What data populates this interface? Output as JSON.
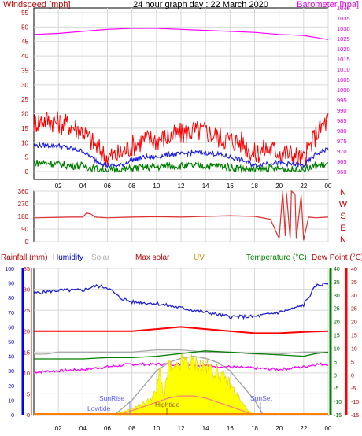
{
  "chart_data": [
    {
      "type": "line",
      "title": "24 hour graph day : 22 March 2020",
      "ylabel_left": "Windspeed [mph]",
      "ylabel_right": "Barometer [hpa]",
      "x_ticks": [
        "02",
        "04",
        "06",
        "08",
        "10",
        "12",
        "14",
        "16",
        "18",
        "20",
        "22",
        "00"
      ],
      "xlim": [
        0,
        24
      ],
      "ylim_left": [
        0,
        55
      ],
      "yticks_left": [
        "0",
        "5",
        "10",
        "15",
        "20",
        "25",
        "30",
        "35",
        "40",
        "45",
        "50",
        "55"
      ],
      "ylim_right": [
        960,
        1040
      ],
      "yticks_right": [
        "960",
        "965",
        "970",
        "975",
        "980",
        "985",
        "990",
        "995",
        "1000",
        "1005",
        "1010",
        "1015",
        "1020",
        "1025",
        "1030",
        "1035",
        "1040"
      ],
      "grid": true,
      "colors": {
        "gust": "#ff0000",
        "average": "#2020e0",
        "lull": "#008000",
        "barometer": "#ff00ff"
      },
      "series": [
        {
          "key": "barometer",
          "axis": "right",
          "x": [
            0,
            2,
            4,
            6,
            8,
            10,
            12,
            14,
            16,
            18,
            20,
            22,
            23,
            24
          ],
          "values": [
            1027,
            1027.5,
            1028.5,
            1029.5,
            1030,
            1030,
            1029.5,
            1029,
            1028.5,
            1028,
            1027,
            1026.5,
            1025.5,
            1024.5
          ]
        },
        {
          "key": "gust",
          "axis": "left",
          "x": [
            0,
            1,
            2,
            3,
            4,
            5,
            6,
            7,
            8,
            9,
            10,
            11,
            12,
            13,
            14,
            15,
            16,
            17,
            18,
            19,
            20,
            21,
            22,
            23,
            24
          ],
          "values": [
            17,
            18,
            17,
            16,
            14,
            9,
            5,
            6,
            9,
            11,
            11,
            12,
            13,
            14,
            14,
            12,
            11,
            10,
            6,
            8,
            7,
            6,
            4,
            13,
            18
          ]
        },
        {
          "key": "average",
          "axis": "left",
          "x": [
            0,
            1,
            2,
            3,
            4,
            5,
            6,
            7,
            8,
            9,
            10,
            11,
            12,
            13,
            14,
            15,
            16,
            17,
            18,
            19,
            20,
            21,
            22,
            23,
            24
          ],
          "values": [
            9,
            9,
            9,
            8,
            7,
            4,
            2,
            2,
            4,
            5,
            5,
            6,
            6,
            6.5,
            6.5,
            6,
            5,
            4,
            2,
            3,
            3,
            2.5,
            2,
            6,
            8
          ]
        },
        {
          "key": "lull",
          "axis": "left",
          "x": [
            0,
            1,
            2,
            3,
            4,
            5,
            6,
            7,
            8,
            9,
            10,
            11,
            12,
            13,
            14,
            15,
            16,
            17,
            18,
            19,
            20,
            21,
            22,
            23,
            24
          ],
          "values": [
            3,
            3,
            2.5,
            2,
            2,
            1,
            0.5,
            0.5,
            1,
            1.5,
            1.5,
            2,
            2,
            2,
            2,
            2,
            1.5,
            1,
            0.5,
            1,
            1,
            0.5,
            0.5,
            2,
            2.5
          ]
        }
      ]
    },
    {
      "type": "line",
      "title": "",
      "x_ticks": [
        "02",
        "04",
        "06",
        "08",
        "10",
        "12",
        "14",
        "16",
        "18",
        "20",
        "22",
        "00"
      ],
      "xlim": [
        0,
        24
      ],
      "ylim": [
        0,
        360
      ],
      "yticks": [
        "0",
        "90",
        "180",
        "270",
        "360"
      ],
      "direction_labels": [
        "N",
        "W",
        "S",
        "E",
        "N"
      ],
      "grid": true,
      "colors": {
        "direction": "#e03030"
      },
      "series": [
        {
          "key": "direction",
          "x": [
            0,
            3,
            4,
            4.3,
            4.7,
            5,
            6,
            8,
            10,
            12,
            14,
            16,
            18,
            19.3,
            19.8,
            20,
            20.3,
            20.5,
            20.6,
            20.9,
            21.0,
            21.3,
            21.4,
            21.8,
            22,
            22.4,
            23,
            24
          ],
          "values": [
            170,
            175,
            175,
            205,
            195,
            175,
            170,
            175,
            178,
            175,
            180,
            185,
            180,
            160,
            60,
            20,
            360,
            40,
            350,
            20,
            360,
            340,
            20,
            330,
            10,
            175,
            170,
            175
          ]
        }
      ]
    },
    {
      "type": "line",
      "title": "",
      "legend": [
        "Rainfall (mm)",
        "Humidity",
        "Solar",
        "Max solar",
        "UV",
        "Temperature (°C)",
        "Dew Point (°C)"
      ],
      "annotations": [
        "SunRise",
        "Lowtide",
        "Hightide",
        "SunSet"
      ],
      "x_ticks": [
        "02",
        "04",
        "06",
        "08",
        "10",
        "12",
        "14",
        "16",
        "18",
        "20",
        "22",
        "00"
      ],
      "xlim": [
        0,
        24
      ],
      "ylim_humidity": [
        0,
        100
      ],
      "yticks_humidity": [
        "0",
        "10",
        "20",
        "30",
        "40",
        "50",
        "60",
        "70",
        "80",
        "90",
        "100"
      ],
      "ylim_rain": [
        0,
        35
      ],
      "yticks_rain": [
        "0",
        "5",
        "10",
        "15",
        "20",
        "25",
        "30",
        "35"
      ],
      "ylim_temp": [
        -15,
        40
      ],
      "yticks_temp": [
        "-15",
        "-10",
        "-5",
        "0",
        "5",
        "10",
        "15",
        "20",
        "25",
        "30",
        "35",
        "40"
      ],
      "grid": true,
      "colors": {
        "humidity": "#2020d0",
        "rain": "#ff0000",
        "solar": "#aaaaaa",
        "maxsolar": "#a0a0a0",
        "solar_fill": "#ffff00",
        "uv": "#ff8080",
        "temperature": "#008000",
        "dewpoint": "#ff00ff",
        "temp_rain_axis": "#ff0000",
        "left_axis": "#0000ff"
      },
      "series": [
        {
          "key": "humidity",
          "axis": "humidity",
          "x": [
            0,
            2,
            4,
            5,
            6,
            7,
            8,
            10,
            12,
            14,
            16,
            17,
            18,
            20,
            21,
            22,
            23,
            24
          ],
          "values": [
            83,
            85,
            85,
            88,
            87,
            80,
            77,
            76,
            73,
            70,
            67,
            67,
            67,
            70,
            72,
            75,
            88,
            90
          ]
        },
        {
          "key": "rain",
          "axis": "rain",
          "x": [
            0,
            2,
            4,
            6,
            8,
            10,
            12,
            14,
            16,
            18,
            20,
            22,
            24
          ],
          "values": [
            20,
            20,
            20,
            20,
            20,
            20.5,
            21,
            20.5,
            20,
            19.5,
            19.5,
            19.8,
            20
          ]
        },
        {
          "key": "solar",
          "axis": "rain",
          "x": [
            0,
            1,
            2,
            4,
            6,
            8,
            10,
            12,
            14,
            16,
            18,
            20,
            22,
            24
          ],
          "values": [
            14.5,
            14.5,
            15,
            15,
            15,
            15,
            15.5,
            15.5,
            15,
            15,
            14.5,
            14.5,
            15,
            15
          ]
        },
        {
          "key": "temperature",
          "axis": "temp",
          "x": [
            0,
            2,
            4,
            6,
            8,
            10,
            12,
            14,
            16,
            18,
            20,
            22,
            23,
            24
          ],
          "values": [
            6,
            6,
            6,
            6.5,
            6.5,
            7,
            8,
            9,
            8.5,
            8,
            7.5,
            7,
            8,
            8.5
          ]
        },
        {
          "key": "dewpoint",
          "axis": "temp",
          "x": [
            0,
            2,
            4,
            6,
            8,
            10,
            12,
            14,
            16,
            18,
            20,
            22,
            23,
            24
          ],
          "values": [
            1,
            1.5,
            2,
            3,
            4,
            4,
            4,
            3.5,
            3,
            2.5,
            2,
            3,
            4,
            4
          ]
        },
        {
          "key": "maxsolar",
          "axis": "rain",
          "x": [
            6.6,
            8,
            9,
            10,
            11,
            12,
            13,
            14,
            15,
            16,
            17,
            18,
            18.7
          ],
          "values": [
            0,
            3.5,
            7,
            10.5,
            12.5,
            13.5,
            14,
            13.5,
            12.5,
            10.5,
            7,
            3.5,
            0
          ]
        },
        {
          "key": "solar_fill",
          "axis": "rain",
          "x": [
            6.6,
            7,
            8,
            9,
            9.5,
            10,
            10.3,
            10.6,
            11,
            11.5,
            12,
            13,
            14,
            15,
            16,
            17,
            17.5,
            18
          ],
          "values": [
            0,
            0.5,
            1.5,
            3,
            4,
            6,
            12,
            4,
            13,
            11,
            13.5,
            13.5,
            12.5,
            11,
            8,
            3,
            1,
            0
          ]
        },
        {
          "key": "uv",
          "axis": "rain",
          "x": [
            7,
            8,
            9,
            10,
            11,
            12,
            13,
            14,
            15,
            16,
            17,
            17.8
          ],
          "values": [
            0,
            1,
            2,
            3,
            4,
            4.5,
            4.5,
            4,
            3,
            2,
            1,
            0
          ]
        }
      ]
    }
  ]
}
